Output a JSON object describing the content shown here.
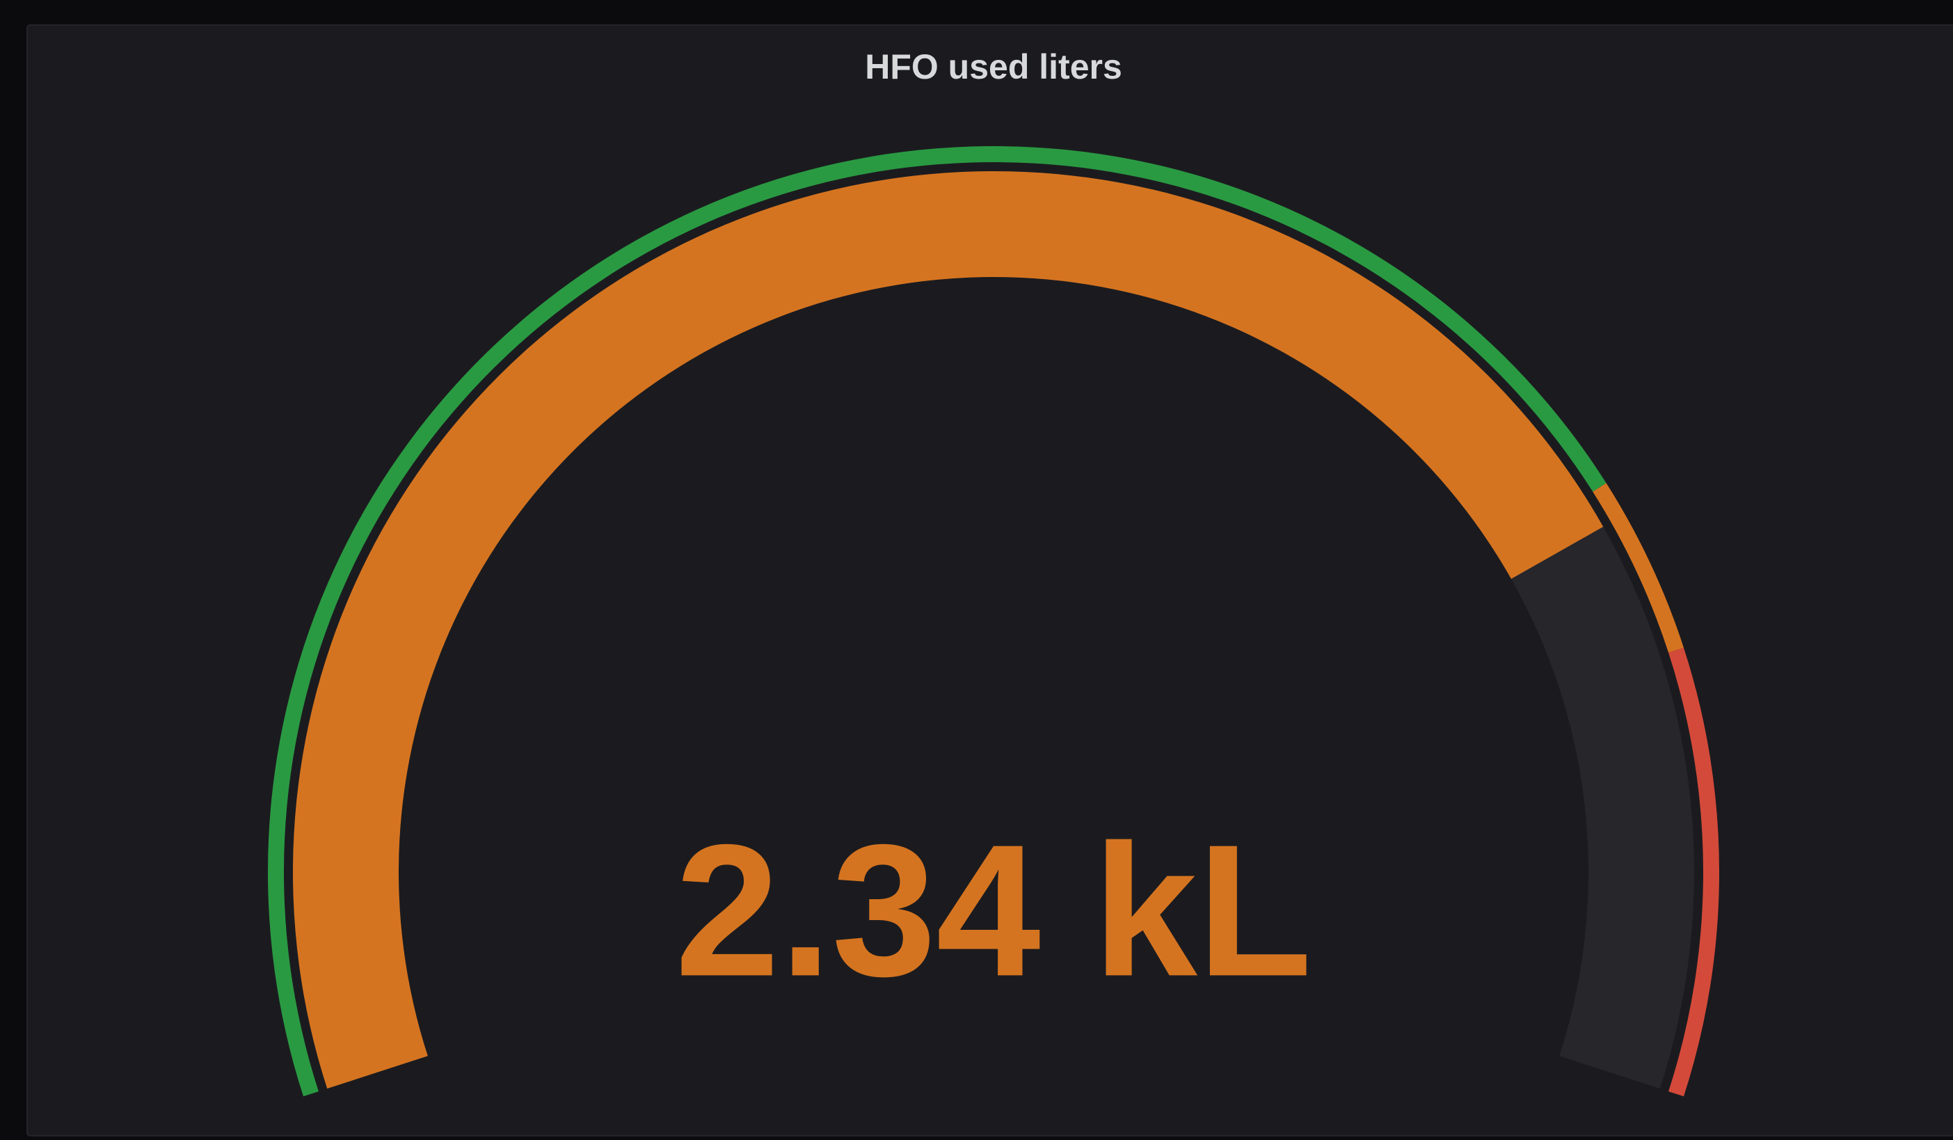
{
  "chart_data": {
    "type": "gauge",
    "title": "HFO used liters",
    "values": [
      2.34
    ],
    "value_labels": [
      "2.34 kL"
    ],
    "ylim": [
      0,
      3
    ],
    "base_color": "#2a9a42",
    "thresholds": [
      {
        "value": 2.3,
        "color": "#d57420"
      },
      {
        "value": 2.5,
        "color": "#d44a3a"
      }
    ]
  }
}
